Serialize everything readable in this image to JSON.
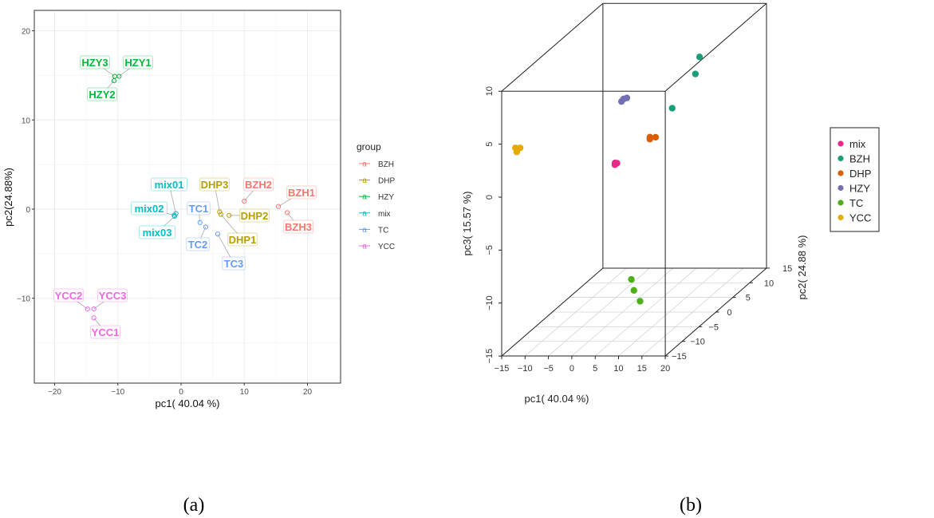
{
  "colors": {
    "BZH": "#F8766D",
    "DHP": "#B79F00",
    "HZY": "#00BA38",
    "mix": "#00BFC4",
    "TC": "#619CFF",
    "YCC": "#F564E3"
  },
  "colors3d": {
    "mix": "#E7298A",
    "BZH": "#1B9E77",
    "DHP": "#D95F02",
    "HZY": "#7570B3",
    "TC": "#4DAF1A",
    "YCC": "#E6AB02"
  },
  "captions": {
    "a": "(a)",
    "b": "(b)"
  },
  "chart_data": [
    {
      "type": "scatter",
      "xlabel": "pc1( 40.04 %)",
      "ylabel": "pc2(24.88%)",
      "xlim": [
        -23.5,
        25
      ],
      "ylim": [
        -19.5,
        22.5
      ],
      "xticks": [
        -20,
        -10,
        0,
        10,
        20
      ],
      "yticks": [
        -10,
        0,
        10,
        20
      ],
      "grid": true,
      "legend": {
        "title": "group",
        "position": "right",
        "entries": [
          "BZH",
          "DHP",
          "HZY",
          "mix",
          "TC",
          "YCC"
        ],
        "key_glyph": "a"
      },
      "points": [
        {
          "label": "HZY3",
          "group": "HZY",
          "x": -10.5,
          "y": 14.9
        },
        {
          "label": "HZY1",
          "group": "HZY",
          "x": -9.8,
          "y": 14.9
        },
        {
          "label": "HZY2",
          "group": "HZY",
          "x": -10.6,
          "y": 14.4
        },
        {
          "label": "mix01",
          "group": "mix",
          "x": -0.8,
          "y": -0.5
        },
        {
          "label": "mix02",
          "group": "mix",
          "x": -1.1,
          "y": -0.7
        },
        {
          "label": "mix03",
          "group": "mix",
          "x": -1.0,
          "y": -0.8
        },
        {
          "label": "TC1",
          "group": "TC",
          "x": 3.0,
          "y": -1.5
        },
        {
          "label": "TC2",
          "group": "TC",
          "x": 3.9,
          "y": -2.0
        },
        {
          "label": "TC3",
          "group": "TC",
          "x": 5.8,
          "y": -2.8
        },
        {
          "label": "DHP3",
          "group": "DHP",
          "x": 6.1,
          "y": -0.3
        },
        {
          "label": "DHP1",
          "group": "DHP",
          "x": 6.3,
          "y": -0.6
        },
        {
          "label": "DHP2",
          "group": "DHP",
          "x": 7.6,
          "y": -0.7
        },
        {
          "label": "BZH2",
          "group": "BZH",
          "x": 10.0,
          "y": 0.9
        },
        {
          "label": "BZH1",
          "group": "BZH",
          "x": 15.4,
          "y": 0.3
        },
        {
          "label": "BZH3",
          "group": "BZH",
          "x": 16.8,
          "y": -0.4
        },
        {
          "label": "YCC2",
          "group": "YCC",
          "x": -14.8,
          "y": -11.2
        },
        {
          "label": "YCC3",
          "group": "YCC",
          "x": -13.8,
          "y": -11.2
        },
        {
          "label": "YCC1",
          "group": "YCC",
          "x": -13.8,
          "y": -12.2
        }
      ]
    },
    {
      "type": "scatter3d",
      "xlabel": "pc1( 40.04 %)",
      "ylabel": "pc2( 24.88 %)",
      "zlabel": "pc3( 15.57 %)",
      "xlim": [
        -15,
        20
      ],
      "ylim": [
        -15,
        15
      ],
      "zlim": [
        -15,
        10
      ],
      "xticks": [
        -15,
        -10,
        -5,
        0,
        5,
        10,
        15,
        20
      ],
      "yticks": [
        -15,
        -10,
        -5,
        0,
        5,
        10,
        15
      ],
      "zticks": [
        -15,
        -10,
        -5,
        0,
        5,
        10
      ],
      "grid": true,
      "legend": {
        "position": "right",
        "entries": [
          "mix",
          "BZH",
          "DHP",
          "HZY",
          "TC",
          "YCC"
        ]
      },
      "points": [
        {
          "group": "mix",
          "x": -0.8,
          "y": -0.5,
          "z": -0.8
        },
        {
          "group": "mix",
          "x": -1.1,
          "y": -0.7,
          "z": -0.9
        },
        {
          "group": "mix",
          "x": -1.0,
          "y": -0.8,
          "z": -0.7
        },
        {
          "group": "BZH",
          "x": 15.4,
          "y": 0.3,
          "z": 7.4
        },
        {
          "group": "BZH",
          "x": 16.8,
          "y": -0.4,
          "z": 9.2
        },
        {
          "group": "BZH",
          "x": 10.0,
          "y": 0.9,
          "z": 4.0
        },
        {
          "group": "DHP",
          "x": 6.1,
          "y": -0.3,
          "z": 1.6
        },
        {
          "group": "DHP",
          "x": 6.3,
          "y": -0.6,
          "z": 1.5
        },
        {
          "group": "DHP",
          "x": 7.6,
          "y": -0.7,
          "z": 1.7
        },
        {
          "group": "HZY",
          "x": -10.5,
          "y": 14.9,
          "z": 1.0
        },
        {
          "group": "HZY",
          "x": -9.8,
          "y": 14.9,
          "z": 1.1
        },
        {
          "group": "HZY",
          "x": -10.6,
          "y": 14.4,
          "z": 0.9
        },
        {
          "group": "TC",
          "x": 3.0,
          "y": -1.5,
          "z": -11.5
        },
        {
          "group": "TC",
          "x": 3.9,
          "y": -2.0,
          "z": -12.4
        },
        {
          "group": "TC",
          "x": 5.8,
          "y": -2.8,
          "z": -13.2
        },
        {
          "group": "YCC",
          "x": -14.8,
          "y": -11.2,
          "z": 3.6
        },
        {
          "group": "YCC",
          "x": -13.8,
          "y": -11.2,
          "z": 3.6
        },
        {
          "group": "YCC",
          "x": -13.8,
          "y": -12.2,
          "z": 3.5
        }
      ]
    }
  ]
}
